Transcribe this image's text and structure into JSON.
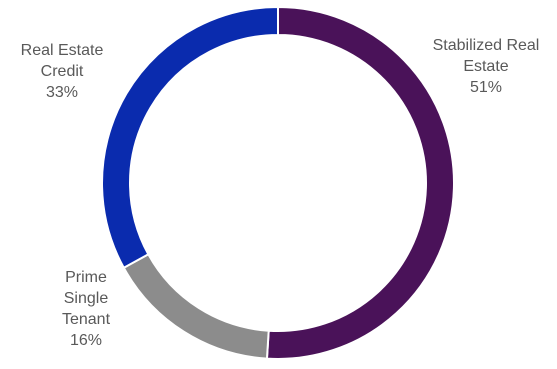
{
  "chart_data": {
    "type": "pie",
    "variant": "donut",
    "title": "",
    "legend": "none",
    "slices": [
      {
        "name": "Stabilized Real Estate",
        "label_lines": [
          "Stabilized Real",
          "Estate"
        ],
        "value": 51,
        "value_label": "51%",
        "color": "#4A1259"
      },
      {
        "name": "Prime Single Tenant",
        "label_lines": [
          "Prime",
          "Single",
          "Tenant"
        ],
        "value": 16,
        "value_label": "16%",
        "color": "#8C8C8C"
      },
      {
        "name": "Real Estate Credit",
        "label_lines": [
          "Real Estate",
          "Credit"
        ],
        "value": 33,
        "value_label": "33%",
        "color": "#0A2BAE"
      }
    ]
  }
}
